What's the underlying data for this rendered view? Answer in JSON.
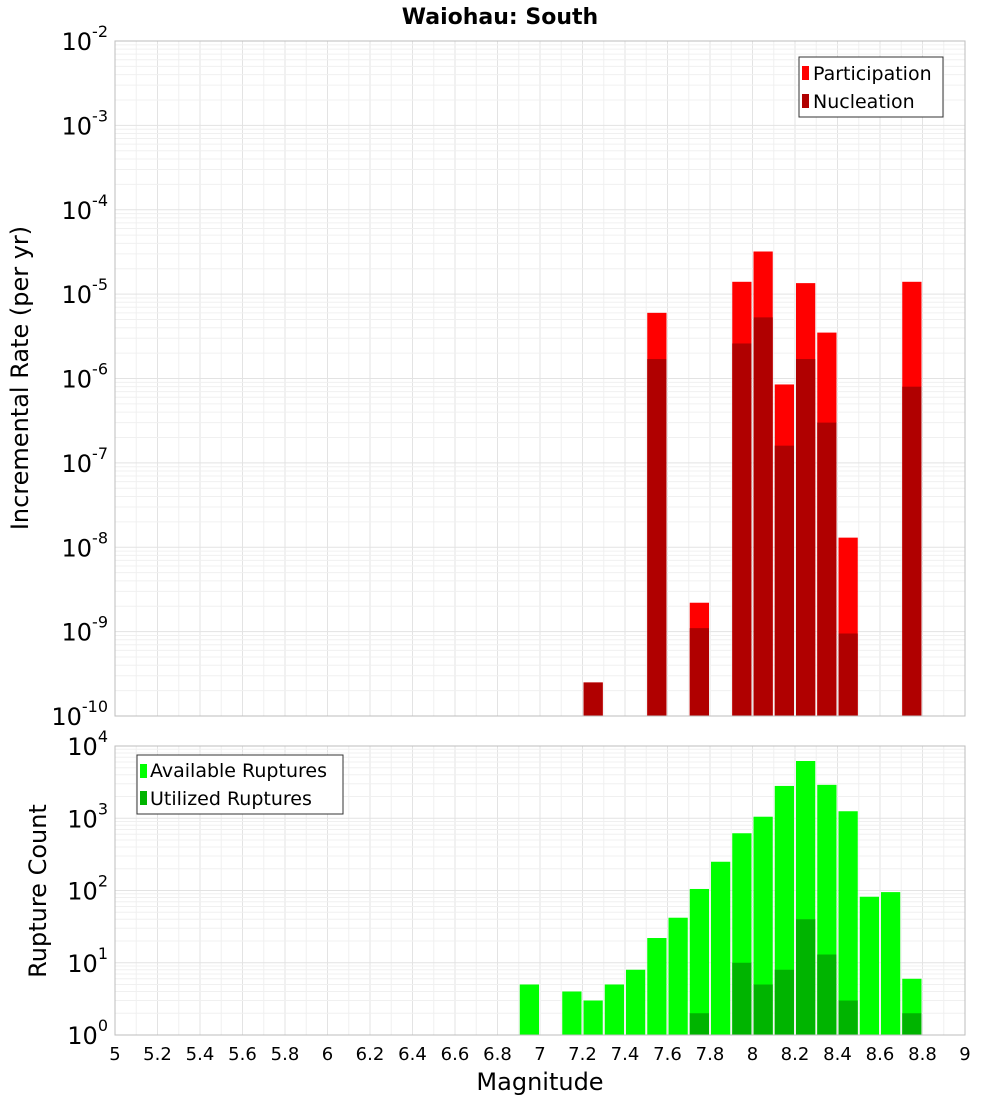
{
  "chart_data": [
    {
      "type": "bar",
      "title": "Waiohau: South",
      "xlabel": "",
      "ylabel": "Incremental Rate (per yr)",
      "yscale": "log",
      "ylim_exponents": [
        -10,
        -2
      ],
      "xlim": [
        5,
        9
      ],
      "legend_position": "top-right",
      "legend": [
        "Participation",
        "Nucleation"
      ],
      "colors": {
        "Participation": "#ff0000",
        "Nucleation": "#b00000"
      },
      "x": [
        7.25,
        7.55,
        7.75,
        7.95,
        8.05,
        8.15,
        8.25,
        8.35,
        8.45,
        8.75
      ],
      "series": [
        {
          "name": "Participation",
          "values": [
            2.5e-10,
            6e-06,
            2.2e-09,
            1.4e-05,
            3.2e-05,
            8.5e-07,
            1.35e-05,
            3.5e-06,
            1.3e-08,
            1.4e-05
          ]
        },
        {
          "name": "Nucleation",
          "values": [
            2.5e-10,
            1.7e-06,
            1.1e-09,
            2.6e-06,
            5.3e-06,
            1.6e-07,
            1.7e-06,
            3e-07,
            9.5e-10,
            8e-07
          ]
        }
      ]
    },
    {
      "type": "bar",
      "title": "",
      "xlabel": "Magnitude",
      "ylabel": "Rupture Count",
      "yscale": "log",
      "ylim_exponents": [
        0,
        4
      ],
      "xlim": [
        5,
        9
      ],
      "legend_position": "top-left",
      "legend": [
        "Available Ruptures",
        "Utilized Ruptures"
      ],
      "colors": {
        "Available Ruptures": "#00ff00",
        "Utilized Ruptures": "#00b400"
      },
      "x": [
        6.95,
        7.15,
        7.25,
        7.35,
        7.45,
        7.55,
        7.65,
        7.75,
        7.85,
        7.95,
        8.05,
        8.15,
        8.25,
        8.35,
        8.45,
        8.55,
        8.65,
        8.75
      ],
      "series": [
        {
          "name": "Available Ruptures",
          "values": [
            5,
            4,
            3,
            5,
            8,
            22,
            42,
            105,
            250,
            620,
            1050,
            2800,
            6200,
            2900,
            1250,
            82,
            95,
            6
          ]
        },
        {
          "name": "Utilized Ruptures",
          "values": [
            0,
            1,
            1,
            0,
            0,
            1,
            0,
            2,
            0,
            10,
            5,
            8,
            40,
            13,
            3,
            0,
            0,
            2
          ]
        }
      ],
      "x_ticks": [
        "5",
        "5.2",
        "5.4",
        "5.6",
        "5.8",
        "6",
        "6.2",
        "6.4",
        "6.6",
        "6.8",
        "7",
        "7.2",
        "7.4",
        "7.6",
        "7.8",
        "8",
        "8.2",
        "8.4",
        "8.6",
        "8.8",
        "9"
      ]
    }
  ]
}
